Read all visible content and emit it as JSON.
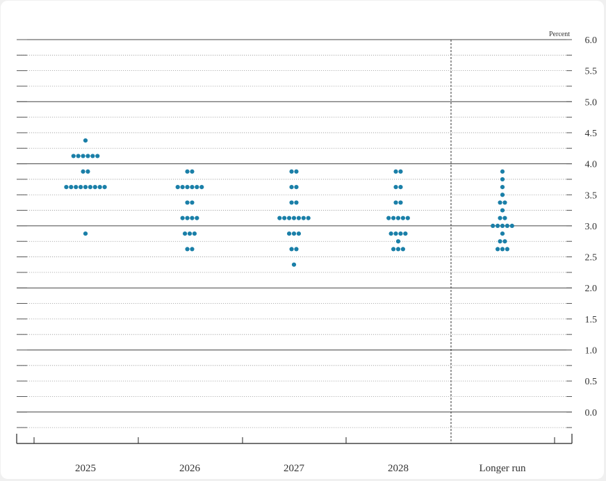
{
  "chart_data": {
    "type": "scatter",
    "title": "",
    "xlabel": "",
    "ylabel": "",
    "unit_label": "Percent",
    "ylim": [
      -0.5,
      6.0
    ],
    "y_ticks": [
      "6.0",
      "5.5",
      "5.0",
      "4.5",
      "4.0",
      "3.5",
      "3.0",
      "2.5",
      "2.0",
      "1.5",
      "1.0",
      "0.5",
      "0.0"
    ],
    "categories": [
      "2025",
      "2026",
      "2027",
      "2028",
      "Longer run"
    ],
    "grid": "solid at whole percents, dotted at quarter percents",
    "dot_color": "#1a7fa8",
    "series": [
      {
        "category": "2025",
        "points": [
          {
            "y": 4.375,
            "count": 1
          },
          {
            "y": 4.125,
            "count": 6
          },
          {
            "y": 3.875,
            "count": 2
          },
          {
            "y": 3.625,
            "count": 9
          },
          {
            "y": 2.875,
            "count": 1
          }
        ]
      },
      {
        "category": "2026",
        "points": [
          {
            "y": 3.875,
            "count": 2
          },
          {
            "y": 3.625,
            "count": 6
          },
          {
            "y": 3.375,
            "count": 2
          },
          {
            "y": 3.125,
            "count": 4
          },
          {
            "y": 2.875,
            "count": 3
          },
          {
            "y": 2.625,
            "count": 2
          }
        ]
      },
      {
        "category": "2027",
        "points": [
          {
            "y": 3.875,
            "count": 2
          },
          {
            "y": 3.625,
            "count": 2
          },
          {
            "y": 3.375,
            "count": 2
          },
          {
            "y": 3.125,
            "count": 7
          },
          {
            "y": 2.875,
            "count": 3
          },
          {
            "y": 2.625,
            "count": 2
          },
          {
            "y": 2.375,
            "count": 1
          }
        ]
      },
      {
        "category": "2028",
        "points": [
          {
            "y": 3.875,
            "count": 2
          },
          {
            "y": 3.625,
            "count": 2
          },
          {
            "y": 3.375,
            "count": 2
          },
          {
            "y": 3.125,
            "count": 5
          },
          {
            "y": 2.875,
            "count": 4
          },
          {
            "y": 2.75,
            "count": 1
          },
          {
            "y": 2.625,
            "count": 3
          }
        ]
      },
      {
        "category": "Longer run",
        "points": [
          {
            "y": 3.875,
            "count": 1
          },
          {
            "y": 3.75,
            "count": 1
          },
          {
            "y": 3.625,
            "count": 1
          },
          {
            "y": 3.5,
            "count": 1
          },
          {
            "y": 3.375,
            "count": 2
          },
          {
            "y": 3.25,
            "count": 1
          },
          {
            "y": 3.125,
            "count": 2
          },
          {
            "y": 3.0,
            "count": 5
          },
          {
            "y": 2.875,
            "count": 1
          },
          {
            "y": 2.75,
            "count": 2
          },
          {
            "y": 2.625,
            "count": 3
          }
        ]
      }
    ]
  }
}
